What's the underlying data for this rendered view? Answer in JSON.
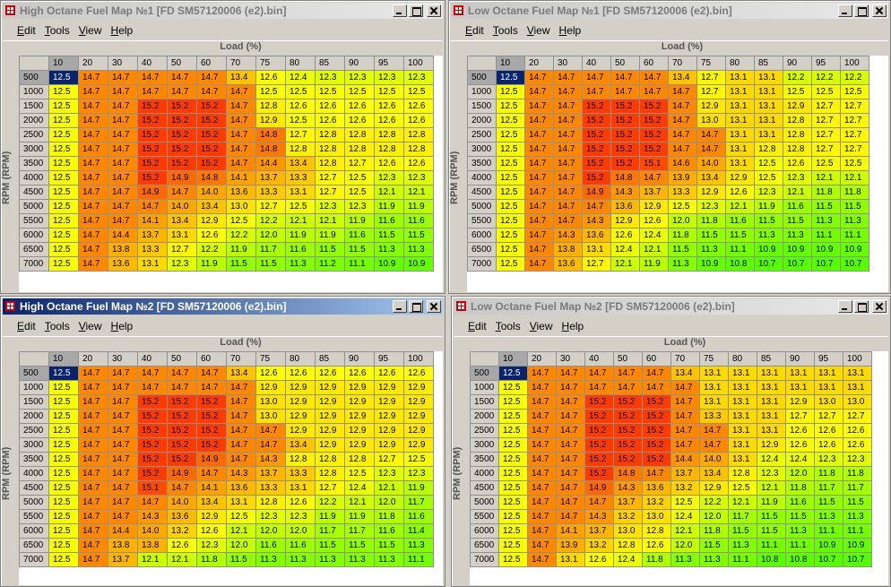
{
  "windows": [
    {
      "title": "High Octane Fuel Map №1 [FD SM57120006 (e2).bin]",
      "menu": [
        "Edit",
        "Tools",
        "View",
        "Help"
      ],
      "load_label": "Load (%)",
      "rpm_label": "RPM (RPM)",
      "columns": [
        10,
        20,
        30,
        40,
        50,
        60,
        70,
        75,
        80,
        85,
        90,
        95,
        100
      ],
      "rpm": [
        500,
        1000,
        1500,
        2000,
        2500,
        3000,
        3500,
        4000,
        4500,
        5000,
        5500,
        6000,
        6500,
        7000
      ],
      "cells": [
        [
          "12.5",
          "14.7",
          "14.7",
          "14.7",
          "14.7",
          "14.7",
          "13.4",
          "12.6",
          "12.4",
          "12.3",
          "12.3",
          "12.3",
          "12.3"
        ],
        [
          "12.5",
          "14.7",
          "14.7",
          "14.7",
          "14.7",
          "14.7",
          "14.7",
          "12.5",
          "12.5",
          "12.5",
          "12.5",
          "12.5",
          "12.5"
        ],
        [
          "12.5",
          "14.7",
          "14.7",
          "15.2",
          "15.2",
          "15.2",
          "14.7",
          "12.8",
          "12.6",
          "12.6",
          "12.6",
          "12.6",
          "12.6"
        ],
        [
          "12.5",
          "14.7",
          "14.7",
          "15.2",
          "15.2",
          "15.2",
          "14.7",
          "12.9",
          "12.5",
          "12.6",
          "12.6",
          "12.6",
          "12.6"
        ],
        [
          "12.5",
          "14.7",
          "14.7",
          "15.2",
          "15.2",
          "15.2",
          "14.7",
          "14.8",
          "12.7",
          "12.8",
          "12.8",
          "12.8",
          "12.8"
        ],
        [
          "12.5",
          "14.7",
          "14.7",
          "15.2",
          "15.2",
          "15.2",
          "14.7",
          "14.8",
          "12.8",
          "12.8",
          "12.8",
          "12.8",
          "12.8"
        ],
        [
          "12.5",
          "14.7",
          "14.7",
          "15.2",
          "15.2",
          "15.2",
          "14.7",
          "14.4",
          "13.4",
          "12.8",
          "12.7",
          "12.6",
          "12.6"
        ],
        [
          "12.5",
          "14.7",
          "14.7",
          "15.2",
          "14.9",
          "14.8",
          "14.1",
          "13.7",
          "13.3",
          "12.7",
          "12.5",
          "12.3",
          "12.3"
        ],
        [
          "12.5",
          "14.7",
          "14.7",
          "14.9",
          "14.7",
          "14.0",
          "13.6",
          "13.3",
          "13.1",
          "12.7",
          "12.5",
          "12.1",
          "12.1"
        ],
        [
          "12.5",
          "14.7",
          "14.7",
          "14.7",
          "14.0",
          "13.4",
          "13.0",
          "12.7",
          "12.5",
          "12.3",
          "12.3",
          "11.9",
          "11.9"
        ],
        [
          "12.5",
          "14.7",
          "14.7",
          "14.1",
          "13.4",
          "12.9",
          "12.5",
          "12.2",
          "12.1",
          "12.1",
          "11.9",
          "11.6",
          "11.6"
        ],
        [
          "12.5",
          "14.7",
          "14.4",
          "13.7",
          "13.1",
          "12.6",
          "12.2",
          "12.0",
          "11.9",
          "11.9",
          "11.6",
          "11.5",
          "11.5"
        ],
        [
          "12.5",
          "14.7",
          "13.8",
          "13.3",
          "12.7",
          "12.2",
          "11.9",
          "11.7",
          "11.6",
          "11.5",
          "11.5",
          "11.3",
          "11.3"
        ],
        [
          "12.5",
          "14.7",
          "13.6",
          "13.1",
          "12.3",
          "11.9",
          "11.5",
          "11.5",
          "11.3",
          "11.2",
          "11.1",
          "10.9",
          "10.9"
        ]
      ]
    },
    {
      "title": "Low Octane Fuel Map №1 [FD SM57120006 (e2).bin]",
      "menu": [
        "Edit",
        "Tools",
        "View",
        "Help"
      ],
      "load_label": "Load (%)",
      "rpm_label": "RPM (RPM)",
      "columns": [
        10,
        20,
        30,
        40,
        50,
        60,
        70,
        75,
        80,
        85,
        90,
        95,
        100
      ],
      "rpm": [
        500,
        1000,
        1500,
        2000,
        2500,
        3000,
        3500,
        4000,
        4500,
        5000,
        5500,
        6000,
        6500,
        7000
      ],
      "cells": [
        [
          "12.5",
          "14.7",
          "14.7",
          "14.7",
          "14.7",
          "14.7",
          "13.4",
          "12.7",
          "13.1",
          "13.1",
          "12.2",
          "12.2",
          "12.2"
        ],
        [
          "12.5",
          "14.7",
          "14.7",
          "14.7",
          "14.7",
          "14.7",
          "14.7",
          "12.7",
          "13.1",
          "13.1",
          "12.5",
          "12.5",
          "12.5"
        ],
        [
          "12.5",
          "14.7",
          "14.7",
          "15.2",
          "15.2",
          "15.2",
          "14.7",
          "12.9",
          "13.1",
          "13.1",
          "12.9",
          "12.7",
          "12.7"
        ],
        [
          "12.5",
          "14.7",
          "14.7",
          "15.2",
          "15.2",
          "15.2",
          "14.7",
          "13.0",
          "13.1",
          "13.1",
          "12.8",
          "12.7",
          "12.7"
        ],
        [
          "12.5",
          "14.7",
          "14.7",
          "15.2",
          "15.2",
          "15.2",
          "14.7",
          "14.7",
          "13.1",
          "13.1",
          "12.8",
          "12.7",
          "12.7"
        ],
        [
          "12.5",
          "14.7",
          "14.7",
          "15.2",
          "15.2",
          "15.2",
          "14.7",
          "14.7",
          "13.1",
          "12.8",
          "12.8",
          "12.7",
          "12.7"
        ],
        [
          "12.5",
          "14.7",
          "14.7",
          "15.2",
          "15.2",
          "15.1",
          "14.6",
          "14.0",
          "13.1",
          "12.5",
          "12.6",
          "12.5",
          "12.5"
        ],
        [
          "12.5",
          "14.7",
          "14.7",
          "15.2",
          "14.8",
          "14.7",
          "13.9",
          "13.4",
          "12.9",
          "12.5",
          "12.3",
          "12.1",
          "12.1"
        ],
        [
          "12.5",
          "14.7",
          "14.7",
          "14.9",
          "14.3",
          "13.7",
          "13.3",
          "12.9",
          "12.6",
          "12.3",
          "12.1",
          "11.8",
          "11.8"
        ],
        [
          "12.5",
          "14.7",
          "14.7",
          "14.7",
          "13.6",
          "12.9",
          "12.5",
          "12.3",
          "12.1",
          "11.9",
          "11.6",
          "11.5",
          "11.5"
        ],
        [
          "12.5",
          "14.7",
          "14.7",
          "14.3",
          "12.9",
          "12.6",
          "12.0",
          "11.8",
          "11.6",
          "11.5",
          "11.5",
          "11.3",
          "11.3"
        ],
        [
          "12.5",
          "14.7",
          "14.3",
          "13.6",
          "12.6",
          "12.4",
          "11.8",
          "11.5",
          "11.5",
          "11.3",
          "11.3",
          "11.1",
          "11.1"
        ],
        [
          "12.5",
          "14.7",
          "13.8",
          "13.1",
          "12.4",
          "12.1",
          "11.5",
          "11.3",
          "11.1",
          "10.9",
          "10.9",
          "10.9",
          "10.9"
        ],
        [
          "12.5",
          "14.7",
          "13.6",
          "12.7",
          "12.1",
          "11.9",
          "11.3",
          "10.9",
          "10.8",
          "10.7",
          "10.7",
          "10.7",
          "10.7"
        ]
      ]
    },
    {
      "title": "High Octane Fuel Map №2 [FD SM57120006 (e2).bin]",
      "menu": [
        "Edit",
        "Tools",
        "View",
        "Help"
      ],
      "load_label": "Load (%)",
      "rpm_label": "RPM (RPM)",
      "columns": [
        10,
        20,
        30,
        40,
        50,
        60,
        70,
        75,
        80,
        85,
        90,
        95,
        100
      ],
      "rpm": [
        500,
        1000,
        1500,
        2000,
        2500,
        3000,
        3500,
        4000,
        4500,
        5000,
        5500,
        6000,
        6500,
        7000
      ],
      "cells": [
        [
          "12.5",
          "14.7",
          "14.7",
          "14.7",
          "14.7",
          "14.7",
          "13.4",
          "12.6",
          "12.6",
          "12.6",
          "12.6",
          "12.6",
          "12.6"
        ],
        [
          "12.5",
          "14.7",
          "14.7",
          "14.7",
          "14.7",
          "14.7",
          "14.7",
          "12.9",
          "12.9",
          "12.9",
          "12.9",
          "12.9",
          "12.9"
        ],
        [
          "12.5",
          "14.7",
          "14.7",
          "15.2",
          "15.2",
          "15.2",
          "14.7",
          "13.0",
          "12.9",
          "12.9",
          "12.9",
          "12.9",
          "12.9"
        ],
        [
          "12.5",
          "14.7",
          "14.7",
          "15.2",
          "15.2",
          "15.2",
          "14.7",
          "13.0",
          "12.9",
          "12.9",
          "12.9",
          "12.9",
          "12.9"
        ],
        [
          "12.5",
          "14.7",
          "14.7",
          "15.2",
          "15.2",
          "15.2",
          "14.7",
          "14.7",
          "12.9",
          "12.9",
          "12.9",
          "12.9",
          "12.9"
        ],
        [
          "12.5",
          "14.7",
          "14.7",
          "15.2",
          "15.2",
          "15.2",
          "14.7",
          "14.7",
          "13.4",
          "12.9",
          "12.9",
          "12.9",
          "12.9"
        ],
        [
          "12.5",
          "14.7",
          "14.7",
          "15.2",
          "15.2",
          "14.9",
          "14.7",
          "14.3",
          "12.8",
          "12.8",
          "12.8",
          "12.7",
          "12.5"
        ],
        [
          "12.5",
          "14.7",
          "14.7",
          "15.2",
          "14.9",
          "14.7",
          "14.3",
          "13.7",
          "13.3",
          "12.8",
          "12.5",
          "12.3",
          "12.3"
        ],
        [
          "12.5",
          "14.7",
          "14.7",
          "15.1",
          "14.7",
          "14.1",
          "13.6",
          "13.3",
          "13.1",
          "12.7",
          "12.4",
          "12.1",
          "11.9"
        ],
        [
          "12.5",
          "14.7",
          "14.7",
          "14.7",
          "14.0",
          "13.4",
          "13.1",
          "12.8",
          "12.6",
          "12.2",
          "12.1",
          "12.0",
          "11.7"
        ],
        [
          "12.5",
          "14.7",
          "14.7",
          "14.3",
          "13.6",
          "12.9",
          "12.5",
          "12.3",
          "12.3",
          "11.9",
          "11.9",
          "11.8",
          "11.6"
        ],
        [
          "12.5",
          "14.7",
          "14.4",
          "14.0",
          "13.2",
          "12.6",
          "12.1",
          "12.0",
          "12.0",
          "11.7",
          "11.7",
          "11.6",
          "11.4"
        ],
        [
          "12.5",
          "14.7",
          "13.8",
          "13.8",
          "12.6",
          "12.3",
          "12.0",
          "11.6",
          "11.6",
          "11.5",
          "11.5",
          "11.5",
          "11.3"
        ],
        [
          "12.5",
          "14.7",
          "13.7",
          "12.1",
          "12.1",
          "11.8",
          "11.5",
          "11.3",
          "11.3",
          "11.3",
          "11.3",
          "11.3",
          "11.1"
        ]
      ]
    },
    {
      "title": "Low Octane Fuel Map №2 [FD SM57120006 (e2).bin]",
      "menu": [
        "Edit",
        "Tools",
        "View",
        "Help"
      ],
      "load_label": "Load (%)",
      "rpm_label": "RPM (RPM)",
      "columns": [
        10,
        20,
        30,
        40,
        50,
        60,
        70,
        75,
        80,
        85,
        90,
        95,
        100
      ],
      "rpm": [
        500,
        1000,
        1500,
        2000,
        2500,
        3000,
        3500,
        4000,
        4500,
        5000,
        5500,
        6000,
        6500,
        7000
      ],
      "cells": [
        [
          "12.5",
          "14.7",
          "14.7",
          "14.7",
          "14.7",
          "14.7",
          "13.4",
          "13.1",
          "13.1",
          "13.1",
          "13.1",
          "13.1",
          "13.1"
        ],
        [
          "12.5",
          "14.7",
          "14.7",
          "14.7",
          "14.7",
          "14.7",
          "14.7",
          "13.1",
          "13.1",
          "13.1",
          "13.1",
          "13.1",
          "13.1"
        ],
        [
          "12.5",
          "14.7",
          "14.7",
          "15.2",
          "15.2",
          "15.2",
          "14.7",
          "13.1",
          "13.1",
          "13.1",
          "12.9",
          "13.0",
          "13.0"
        ],
        [
          "12.5",
          "14.7",
          "14.7",
          "15.2",
          "15.2",
          "15.2",
          "14.7",
          "13.3",
          "13.1",
          "13.1",
          "12.7",
          "12.7",
          "12.7"
        ],
        [
          "12.5",
          "14.7",
          "14.7",
          "15.2",
          "15.2",
          "15.2",
          "14.7",
          "14.7",
          "13.1",
          "13.1",
          "12.6",
          "12.6",
          "12.6"
        ],
        [
          "12.5",
          "14.7",
          "14.7",
          "15.2",
          "15.2",
          "15.2",
          "14.7",
          "14.7",
          "13.1",
          "12.9",
          "12.6",
          "12.6",
          "12.6"
        ],
        [
          "12.5",
          "14.7",
          "14.7",
          "15.2",
          "15.2",
          "15.2",
          "14.4",
          "14.0",
          "13.1",
          "12.4",
          "12.4",
          "12.3",
          "12.3"
        ],
        [
          "12.5",
          "14.7",
          "14.7",
          "15.2",
          "14.8",
          "14.7",
          "13.7",
          "13.4",
          "12.8",
          "12.3",
          "12.0",
          "11.8",
          "11.8"
        ],
        [
          "12.5",
          "14.7",
          "14.7",
          "14.9",
          "14.3",
          "13.6",
          "13.2",
          "12.9",
          "12.5",
          "12.1",
          "11.8",
          "11.7",
          "11.7"
        ],
        [
          "12.5",
          "14.7",
          "14.7",
          "14.7",
          "13.7",
          "13.2",
          "12.5",
          "12.2",
          "12.1",
          "11.9",
          "11.6",
          "11.5",
          "11.5"
        ],
        [
          "12.5",
          "14.7",
          "14.7",
          "14.3",
          "13.2",
          "13.0",
          "12.4",
          "12.0",
          "11.7",
          "11.5",
          "11.5",
          "11.3",
          "11.3"
        ],
        [
          "12.5",
          "14.7",
          "14.1",
          "13.7",
          "13.0",
          "12.8",
          "12.1",
          "11.8",
          "11.5",
          "11.5",
          "11.3",
          "11.1",
          "11.1"
        ],
        [
          "12.5",
          "14.7",
          "13.9",
          "13.2",
          "12.8",
          "12.6",
          "12.0",
          "11.5",
          "11.3",
          "11.1",
          "11.1",
          "10.9",
          "10.9"
        ],
        [
          "12.5",
          "14.7",
          "13.1",
          "12.6",
          "12.4",
          "11.8",
          "11.3",
          "11.3",
          "11.1",
          "10.8",
          "10.8",
          "10.7",
          "10.7"
        ]
      ]
    }
  ]
}
